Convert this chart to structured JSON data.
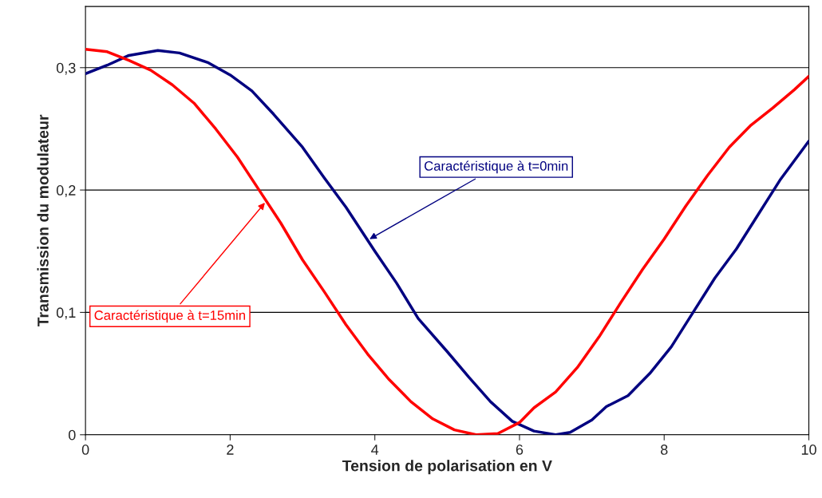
{
  "chart_data": {
    "type": "line",
    "xlabel": "Tension de polarisation en V",
    "ylabel": "Transmission du modulateur",
    "xlim": [
      0,
      10
    ],
    "xticks": [
      0,
      2,
      4,
      6,
      8,
      10
    ],
    "ylim": [
      0,
      0.35
    ],
    "yticks": [
      {
        "value": 0,
        "label": "0"
      },
      {
        "value": 0.1,
        "label": "0,1"
      },
      {
        "value": 0.2,
        "label": "0,2"
      },
      {
        "value": 0.3,
        "label": "0,3"
      }
    ],
    "grid": "y",
    "legend": false,
    "line_style": "solid",
    "marker": "none",
    "series": [
      {
        "color": "#000080",
        "x": [
          0,
          0.3,
          0.6,
          1.0,
          1.3,
          1.7,
          2.0,
          2.3,
          2.6,
          3.0,
          3.3,
          3.6,
          4.0,
          4.3,
          4.6,
          5.0,
          5.3,
          5.6,
          5.9,
          6.2,
          6.5,
          6.7,
          7.0,
          7.2,
          7.5,
          7.8,
          8.1,
          8.4,
          8.7,
          9.0,
          9.3,
          9.6,
          10
        ],
        "values": [
          0.295,
          0.302,
          0.31,
          0.314,
          0.312,
          0.304,
          0.294,
          0.281,
          0.262,
          0.235,
          0.21,
          0.186,
          0.15,
          0.124,
          0.095,
          0.068,
          0.047,
          0.027,
          0.011,
          0.003,
          0.0,
          0.002,
          0.012,
          0.023,
          0.032,
          0.05,
          0.072,
          0.1,
          0.128,
          0.152,
          0.18,
          0.208,
          0.24
        ]
      },
      {
        "color": "#ff0000",
        "x": [
          0,
          0.3,
          0.6,
          0.9,
          1.2,
          1.5,
          1.8,
          2.1,
          2.4,
          2.7,
          3.0,
          3.3,
          3.6,
          3.9,
          4.2,
          4.5,
          4.8,
          5.1,
          5.4,
          5.7,
          6.0,
          6.2,
          6.5,
          6.8,
          7.1,
          7.4,
          7.7,
          8.0,
          8.3,
          8.6,
          8.9,
          9.2,
          9.5,
          9.8,
          10
        ],
        "values": [
          0.315,
          0.313,
          0.306,
          0.298,
          0.286,
          0.271,
          0.25,
          0.227,
          0.2,
          0.173,
          0.143,
          0.117,
          0.09,
          0.066,
          0.045,
          0.027,
          0.013,
          0.004,
          0.0,
          0.001,
          0.01,
          0.022,
          0.035,
          0.055,
          0.08,
          0.108,
          0.135,
          0.16,
          0.187,
          0.212,
          0.235,
          0.253,
          0.267,
          0.282,
          0.293
        ]
      }
    ],
    "annotations": [
      {
        "text": "Caractéristique à t=0min",
        "x": 3.9,
        "y": 0.159
      },
      {
        "text": "Caractéristique à t=15min",
        "x": 2.5,
        "y": 0.191
      }
    ]
  }
}
